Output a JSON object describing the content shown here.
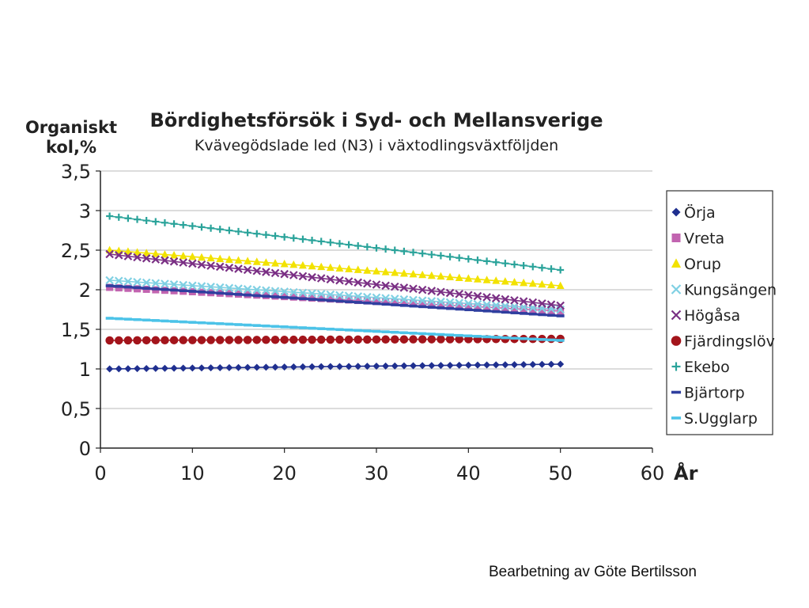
{
  "chart_data": {
    "type": "line",
    "title": "Bördighetsförsök i Syd- och Mellansverige",
    "subtitle": "Kvävegödslade led (N3) i växtodlingsväxtföljden",
    "ylabel_line1": "Organiskt",
    "ylabel_line2": "kol,%",
    "xlabel": "År",
    "xlim": [
      0,
      60
    ],
    "ylim": [
      0,
      3.5
    ],
    "x_ticks": [
      0,
      10,
      20,
      30,
      40,
      50,
      60
    ],
    "x_tick_labels": [
      "0",
      "10",
      "20",
      "30",
      "40",
      "50",
      "60"
    ],
    "y_ticks": [
      0,
      0.5,
      1,
      1.5,
      2,
      2.5,
      3,
      3.5
    ],
    "y_tick_labels": [
      "0",
      "0,5",
      "1",
      "1,5",
      "2",
      "2,5",
      "3",
      "3,5"
    ],
    "grid": "horizontal",
    "legend_position": "right",
    "x_range": [
      1,
      50
    ],
    "series": [
      {
        "name": "Örja",
        "start": 1.0,
        "end": 1.06,
        "color": "#1f2f8f",
        "marker": "diamond"
      },
      {
        "name": "Vreta",
        "start": 2.03,
        "end": 1.73,
        "color": "#c264b0",
        "marker": "square"
      },
      {
        "name": "Orup",
        "start": 2.5,
        "end": 2.05,
        "color": "#f2e200",
        "marker": "triangle"
      },
      {
        "name": "Kungsängen",
        "start": 2.12,
        "end": 1.75,
        "color": "#7fd0e3",
        "marker": "x"
      },
      {
        "name": "Högåsa",
        "start": 2.45,
        "end": 1.8,
        "color": "#7a2f84",
        "marker": "x"
      },
      {
        "name": "Fjärdingslöv",
        "start": 1.36,
        "end": 1.38,
        "color": "#a3141b",
        "marker": "circle"
      },
      {
        "name": "Ekebo",
        "start": 2.93,
        "end": 2.25,
        "color": "#2aa39a",
        "marker": "plus"
      },
      {
        "name": "Bjärtorp",
        "start": 2.05,
        "end": 1.67,
        "color": "#2f3f9f",
        "marker": "dash"
      },
      {
        "name": "S.Ugglarp",
        "start": 1.64,
        "end": 1.36,
        "color": "#4cc3e8",
        "marker": "dash"
      }
    ]
  },
  "credit": "Bearbetning av Göte Bertilsson"
}
